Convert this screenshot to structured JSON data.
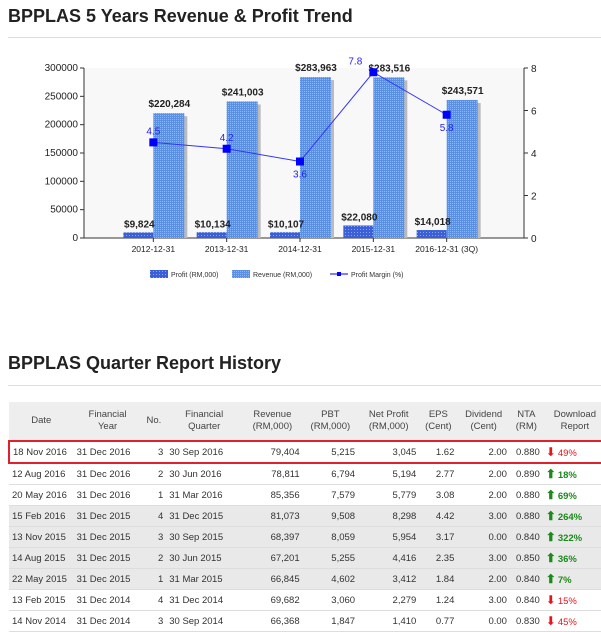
{
  "chart_title": "BPPLAS 5 Years Revenue & Profit Trend",
  "table_title": "BPPLAS Quarter Report History",
  "chart_data": {
    "type": "bar",
    "categories": [
      "2012-12-31",
      "2013-12-31",
      "2014-12-31",
      "2015-12-31",
      "2016-12-31 (3Q)"
    ],
    "series": [
      {
        "name": "Profit (RM,000)",
        "type": "bar",
        "axis": "left",
        "values": [
          9824,
          10134,
          10107,
          22080,
          14018
        ],
        "labels": [
          "$9,824",
          "$10,134",
          "$10,107",
          "$22,080",
          "$14,018"
        ],
        "color": "#3a5fd9"
      },
      {
        "name": "Revenue (RM,000)",
        "type": "bar",
        "axis": "left",
        "values": [
          220284,
          241003,
          283963,
          283516,
          243571
        ],
        "labels": [
          "$220,284",
          "$241,003",
          "$283,963",
          "$283,516",
          "$243,571"
        ],
        "color": "#5b8fe0"
      },
      {
        "name": "Profit Margin (%)",
        "type": "line",
        "axis": "right",
        "values": [
          4.5,
          4.2,
          3.6,
          7.8,
          5.8
        ],
        "labels": [
          "4.5",
          "4.2",
          "3.6",
          "7.8",
          "5.8"
        ],
        "color": "#0000ff"
      }
    ],
    "y_left": {
      "ylim": [
        0,
        300000
      ],
      "ticks": [
        "0",
        "50000",
        "100000",
        "150000",
        "200000",
        "250000",
        "300000"
      ]
    },
    "y_right": {
      "ylim": [
        0,
        8
      ],
      "ticks": [
        "0",
        "2",
        "4",
        "6",
        "8"
      ]
    },
    "legend": "bottom"
  },
  "table": {
    "headers": [
      [
        "Date",
        ""
      ],
      [
        "Financial",
        "Year"
      ],
      [
        "No.",
        ""
      ],
      [
        "Financial",
        "Quarter"
      ],
      [
        "Revenue",
        "(RM,000)"
      ],
      [
        "PBT",
        "(RM,000)"
      ],
      [
        "Net Profit",
        "(RM,000)"
      ],
      [
        "EPS",
        "(Cent)"
      ],
      [
        "Dividend",
        "(Cent)"
      ],
      [
        "NTA",
        "(RM)"
      ],
      [
        "Download",
        "Report"
      ]
    ],
    "rows": [
      [
        "18 Nov 2016",
        "31 Dec 2016",
        "3",
        "30 Sep 2016",
        "79,404",
        "5,215",
        "3,045",
        "1.62",
        "2.00",
        "0.880",
        "down",
        "49%"
      ],
      [
        "12 Aug 2016",
        "31 Dec 2016",
        "2",
        "30 Jun 2016",
        "78,811",
        "6,794",
        "5,194",
        "2.77",
        "2.00",
        "0.890",
        "up",
        "18%"
      ],
      [
        "20 May 2016",
        "31 Dec 2016",
        "1",
        "31 Mar 2016",
        "85,356",
        "7,579",
        "5,779",
        "3.08",
        "2.00",
        "0.880",
        "up",
        "69%"
      ],
      [
        "15 Feb 2016",
        "31 Dec 2015",
        "4",
        "31 Dec 2015",
        "81,073",
        "9,508",
        "8,298",
        "4.42",
        "3.00",
        "0.880",
        "up",
        "264%"
      ],
      [
        "13 Nov 2015",
        "31 Dec 2015",
        "3",
        "30 Sep 2015",
        "68,397",
        "8,059",
        "5,954",
        "3.17",
        "0.00",
        "0.840",
        "up",
        "322%"
      ],
      [
        "14 Aug 2015",
        "31 Dec 2015",
        "2",
        "30 Jun 2015",
        "67,201",
        "5,255",
        "4,416",
        "2.35",
        "3.00",
        "0.850",
        "up",
        "36%"
      ],
      [
        "22 May 2015",
        "31 Dec 2015",
        "1",
        "31 Mar 2015",
        "66,845",
        "4,602",
        "3,412",
        "1.84",
        "2.00",
        "0.840",
        "up",
        "7%"
      ],
      [
        "13 Feb 2015",
        "31 Dec 2014",
        "4",
        "31 Dec 2014",
        "69,682",
        "3,060",
        "2,279",
        "1.24",
        "3.00",
        "0.840",
        "down",
        "15%"
      ],
      [
        "14 Nov 2014",
        "31 Dec 2014",
        "3",
        "30 Sep 2014",
        "66,368",
        "1,847",
        "1,410",
        "0.77",
        "0.00",
        "0.830",
        "down",
        "45%"
      ]
    ]
  }
}
